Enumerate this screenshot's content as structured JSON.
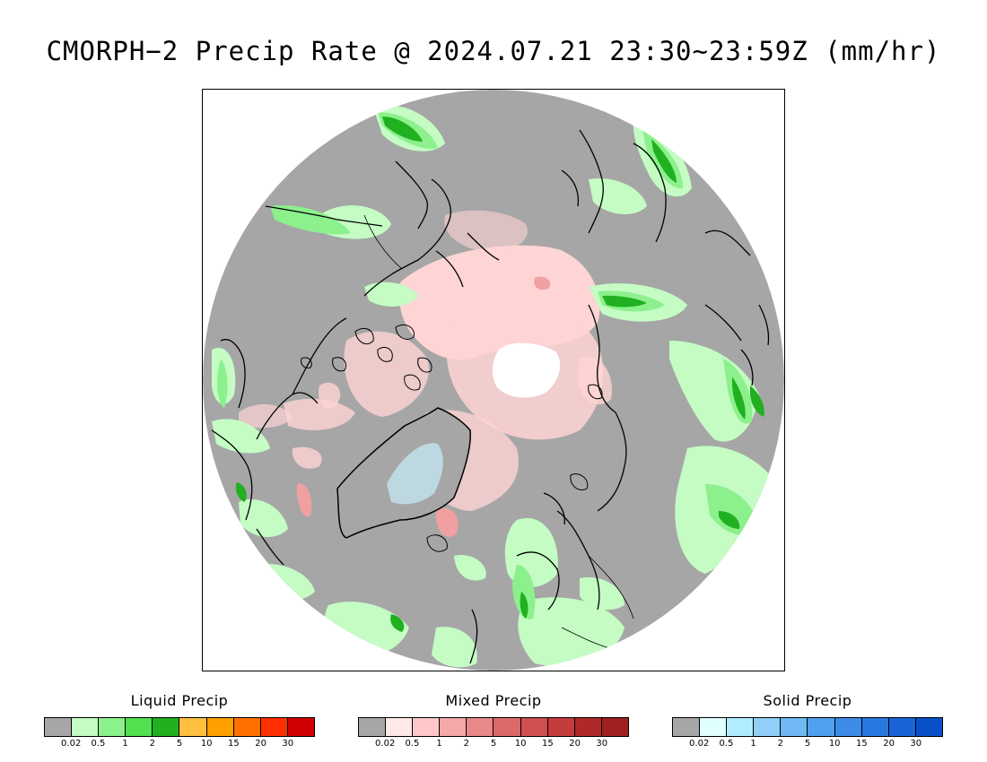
{
  "title": "CMORPH−2 Precip Rate @ 2024.07.21 23:30~23:59Z (mm/hr)",
  "legends": [
    {
      "name": "Liquid Precip",
      "colors": [
        "#a6a6a6",
        "#c4fcc4",
        "#8cf08c",
        "#50e050",
        "#20b020",
        "#ffc040",
        "#ffa000",
        "#ff7000",
        "#ff3000",
        "#d00000"
      ],
      "ticks": [
        "0.02",
        "0.5",
        "1",
        "2",
        "5",
        "10",
        "15",
        "20",
        "30"
      ]
    },
    {
      "name": "Mixed Precip",
      "colors": [
        "#a6a6a6",
        "#ffe8e8",
        "#ffc8c8",
        "#f4a8a8",
        "#e88888",
        "#dc6868",
        "#d05050",
        "#c43c3c",
        "#b02828",
        "#a02020"
      ],
      "ticks": [
        "0.02",
        "0.5",
        "1",
        "2",
        "5",
        "10",
        "15",
        "20",
        "30"
      ]
    },
    {
      "name": "Solid Precip",
      "colors": [
        "#a6a6a6",
        "#e0ffff",
        "#b0eeff",
        "#90d0f8",
        "#70b8f4",
        "#50a0f0",
        "#3c8ce8",
        "#2878e0",
        "#1864d8",
        "#0850c8"
      ],
      "ticks": [
        "0.02",
        "0.5",
        "1",
        "2",
        "5",
        "10",
        "15",
        "20",
        "30"
      ]
    }
  ],
  "map_colors": {
    "no_precip": "#a6a6a6",
    "liquid_light": "#c4fcc4",
    "liquid_mid": "#8cf08c",
    "liquid_heavy": "#20b020",
    "mixed_light": "#ffd4d4",
    "mixed_mid": "#f0a0a0",
    "solid_light": "#c8eefa",
    "missing": "#ffffff"
  }
}
